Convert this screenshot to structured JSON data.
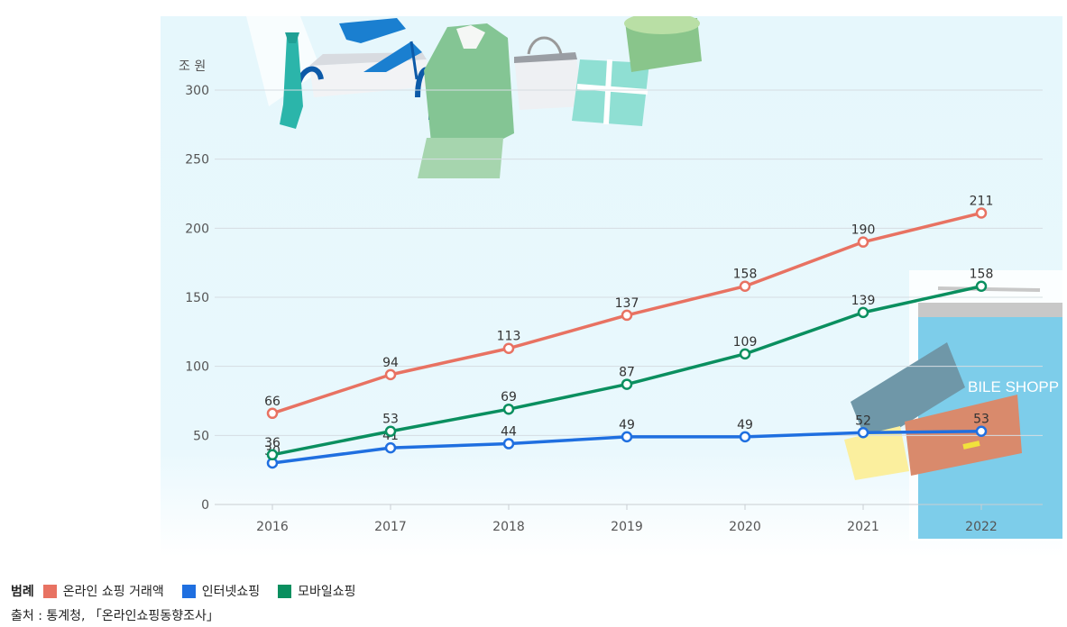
{
  "chart_data": {
    "type": "line",
    "ylabel": "조 원",
    "ylim": [
      0,
      300
    ],
    "yticks": [
      0,
      50,
      100,
      150,
      200,
      250,
      300
    ],
    "x": [
      "2016",
      "2017",
      "2018",
      "2019",
      "2020",
      "2021",
      "2022"
    ],
    "grid": true,
    "legend_position": "bottom-left",
    "series": [
      {
        "name": "온라인 쇼핑 거래액",
        "color": "#e87262",
        "values": [
          66,
          94,
          113,
          137,
          158,
          190,
          211
        ]
      },
      {
        "name": "인터넷쇼핑",
        "color": "#1f6fe0",
        "values": [
          30,
          41,
          44,
          49,
          49,
          52,
          53
        ]
      },
      {
        "name": "모바일쇼핑",
        "color": "#0a8f5f",
        "values": [
          36,
          53,
          69,
          87,
          109,
          139,
          158
        ]
      }
    ]
  },
  "legend": {
    "title": "범례"
  },
  "source": {
    "text": "출처 : 통계청, 「온라인쇼핑동향조사」"
  },
  "decoration": {
    "store_sign": "BILE SHOPP"
  }
}
